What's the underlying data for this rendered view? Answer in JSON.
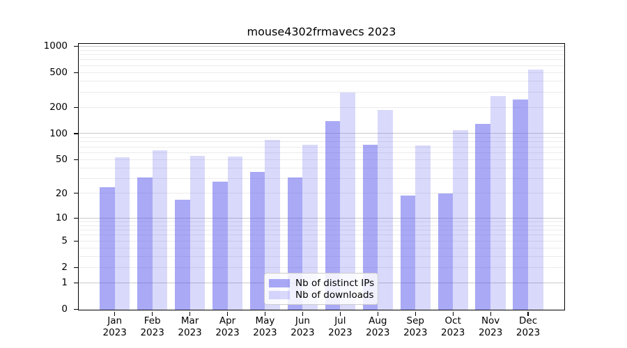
{
  "chart_data": {
    "type": "bar",
    "title": "mouse4302frmavecs 2023",
    "categories": [
      "Jan",
      "Feb",
      "Mar",
      "Apr",
      "May",
      "Jun",
      "Jul",
      "Aug",
      "Sep",
      "Oct",
      "Nov",
      "Dec"
    ],
    "x_year_label": "2023",
    "series": [
      {
        "name": "Nb of distinct IPs",
        "color": "rgba(84,84,238,0.50)",
        "values": [
          24,
          31,
          17,
          28,
          36,
          31,
          140,
          75,
          19,
          20,
          130,
          250
        ]
      },
      {
        "name": "Nb of downloads",
        "color": "rgba(84,84,238,0.22)",
        "values": [
          54,
          65,
          56,
          55,
          86,
          75,
          300,
          190,
          73,
          110,
          270,
          545
        ]
      }
    ],
    "y_axis": {
      "scale": "log1p",
      "tick_values": [
        0,
        1,
        2,
        5,
        10,
        20,
        50,
        100,
        200,
        500,
        1000
      ],
      "tick_labels": [
        "0",
        "1",
        "2",
        "5",
        "10",
        "20",
        "50",
        "100",
        "200",
        "500",
        "1000"
      ],
      "max_value": 1060
    },
    "grid": {
      "major_values": [
        1,
        10,
        100,
        1000
      ],
      "minor_values": [
        2,
        3,
        4,
        5,
        6,
        7,
        8,
        9,
        20,
        30,
        40,
        50,
        60,
        70,
        80,
        90,
        200,
        300,
        400,
        500,
        600,
        700,
        800,
        900
      ],
      "major_color": "#c9c9c9",
      "minor_color": "#ebebeb"
    },
    "legend": {
      "position": "bottom-center"
    },
    "colors": {
      "axis": "#000000",
      "background": "#ffffff",
      "text": "#000000"
    }
  }
}
